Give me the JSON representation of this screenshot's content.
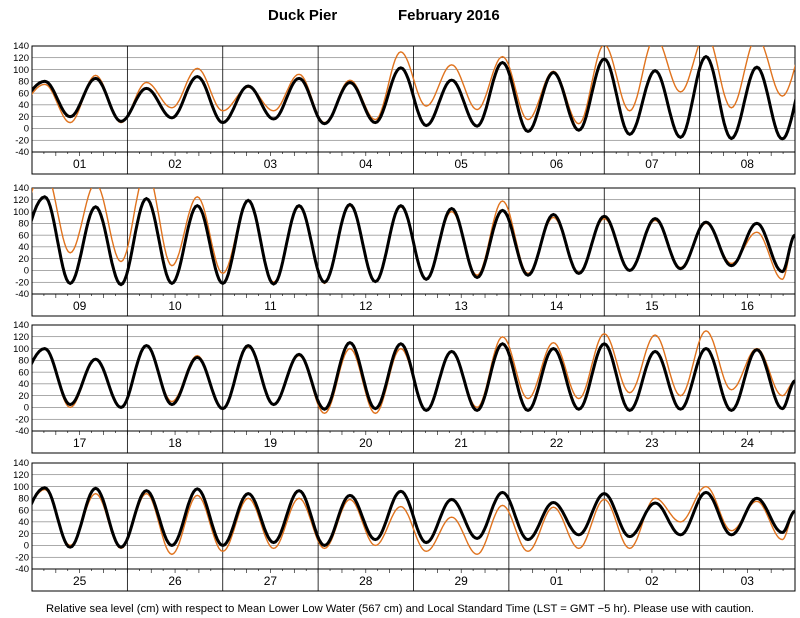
{
  "chart_data": {
    "type": "line",
    "title": "Duck Pier",
    "subtitle": "February   2016",
    "footer": "Relative sea level (cm) with respect to Mean Lower Low Water (567 cm) and Local Standard Time (LST = GMT −5 hr). Please use with caution.",
    "ylim": [
      -40,
      140
    ],
    "yticks": [
      -40,
      -20,
      0,
      20,
      40,
      60,
      80,
      100,
      120,
      140
    ],
    "grid": true,
    "colors": {
      "predicted": "#000000",
      "observed": "#e0731e"
    },
    "panels": [
      {
        "day_labels": [
          "01",
          "02",
          "03",
          "04",
          "05",
          "06",
          "07",
          "08"
        ],
        "high_predicted": [
          80,
          85,
          68,
          88,
          72,
          85,
          78,
          103,
          82,
          112,
          95,
          118,
          98,
          122,
          104
        ],
        "low_predicted": [
          20,
          12,
          18,
          10,
          16,
          8,
          10,
          5,
          4,
          -5,
          -3,
          -10,
          -15,
          -17,
          -18
        ],
        "high_observed": [
          75,
          90,
          78,
          102,
          70,
          92,
          82,
          130,
          108,
          122,
          97,
          142,
          155,
          160,
          155
        ],
        "low_observed": [
          10,
          10,
          35,
          30,
          30,
          10,
          15,
          38,
          32,
          15,
          8,
          30,
          62,
          35,
          55
        ]
      },
      {
        "day_labels": [
          "09",
          "10",
          "11",
          "12",
          "13",
          "14",
          "15",
          "16"
        ],
        "high_predicted": [
          125,
          108,
          122,
          110,
          119,
          110,
          112,
          110,
          105,
          102,
          95,
          92,
          88,
          82,
          80
        ],
        "low_predicted": [
          -22,
          -24,
          -22,
          -22,
          -23,
          -20,
          -19,
          -15,
          -12,
          -8,
          -5,
          0,
          3,
          8,
          -2
        ],
        "high_observed": [
          170,
          148,
          170,
          125,
          118,
          108,
          110,
          108,
          100,
          118,
          90,
          88,
          85,
          80,
          65
        ],
        "low_observed": [
          30,
          15,
          8,
          -5,
          -20,
          -22,
          -20,
          -15,
          -8,
          -5,
          -3,
          0,
          5,
          12,
          -15
        ],
        "end_value": 60
      },
      {
        "day_labels": [
          "17",
          "18",
          "19",
          "20",
          "21",
          "22",
          "23",
          "24"
        ],
        "high_predicted": [
          100,
          82,
          105,
          85,
          105,
          90,
          110,
          108,
          95,
          108,
          100,
          108,
          95,
          100,
          98
        ],
        "low_predicted": [
          5,
          0,
          5,
          -2,
          5,
          -3,
          -2,
          -5,
          -5,
          -5,
          -3,
          -5,
          -3,
          -5,
          -2
        ],
        "high_observed": [
          100,
          82,
          105,
          88,
          103,
          88,
          100,
          100,
          95,
          120,
          110,
          125,
          123,
          130,
          100
        ],
        "low_observed": [
          0,
          0,
          10,
          -3,
          5,
          -10,
          -10,
          -5,
          0,
          15,
          15,
          25,
          20,
          30,
          20
        ],
        "end_value": 45
      },
      {
        "day_labels": [
          "25",
          "26",
          "27",
          "28",
          "29",
          "01",
          "02",
          "03"
        ],
        "high_predicted": [
          98,
          97,
          93,
          96,
          88,
          93,
          85,
          92,
          78,
          90,
          73,
          88,
          72,
          90,
          80
        ],
        "low_predicted": [
          -3,
          -3,
          0,
          0,
          5,
          0,
          10,
          5,
          12,
          10,
          18,
          15,
          18,
          18,
          22
        ],
        "high_observed": [
          95,
          88,
          88,
          85,
          80,
          80,
          78,
          66,
          48,
          68,
          65,
          78,
          80,
          100,
          75
        ],
        "low_observed": [
          0,
          -5,
          -15,
          -10,
          -5,
          -5,
          0,
          -10,
          -15,
          -10,
          -5,
          -5,
          40,
          25,
          10
        ],
        "end_value": 58
      }
    ]
  }
}
